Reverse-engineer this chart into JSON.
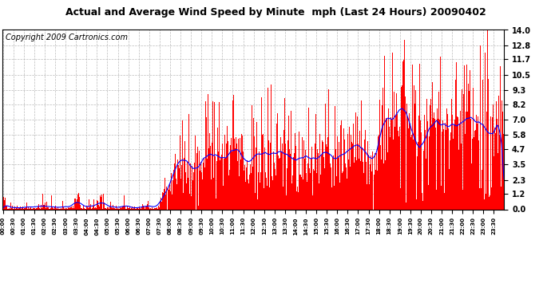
{
  "title": "Actual and Average Wind Speed by Minute  mph (Last 24 Hours) 20090402",
  "copyright": "Copyright 2009 Cartronics.com",
  "yticks": [
    0.0,
    1.2,
    2.3,
    3.5,
    4.7,
    5.8,
    7.0,
    8.2,
    9.3,
    10.5,
    11.7,
    12.8,
    14.0
  ],
  "ymax": 14.0,
  "ymin": 0.0,
  "bar_color": "#FF0000",
  "line_color": "#0000FF",
  "bg_color": "#FFFFFF",
  "grid_color": "#AAAAAA",
  "title_fontsize": 9,
  "copyright_fontsize": 7
}
